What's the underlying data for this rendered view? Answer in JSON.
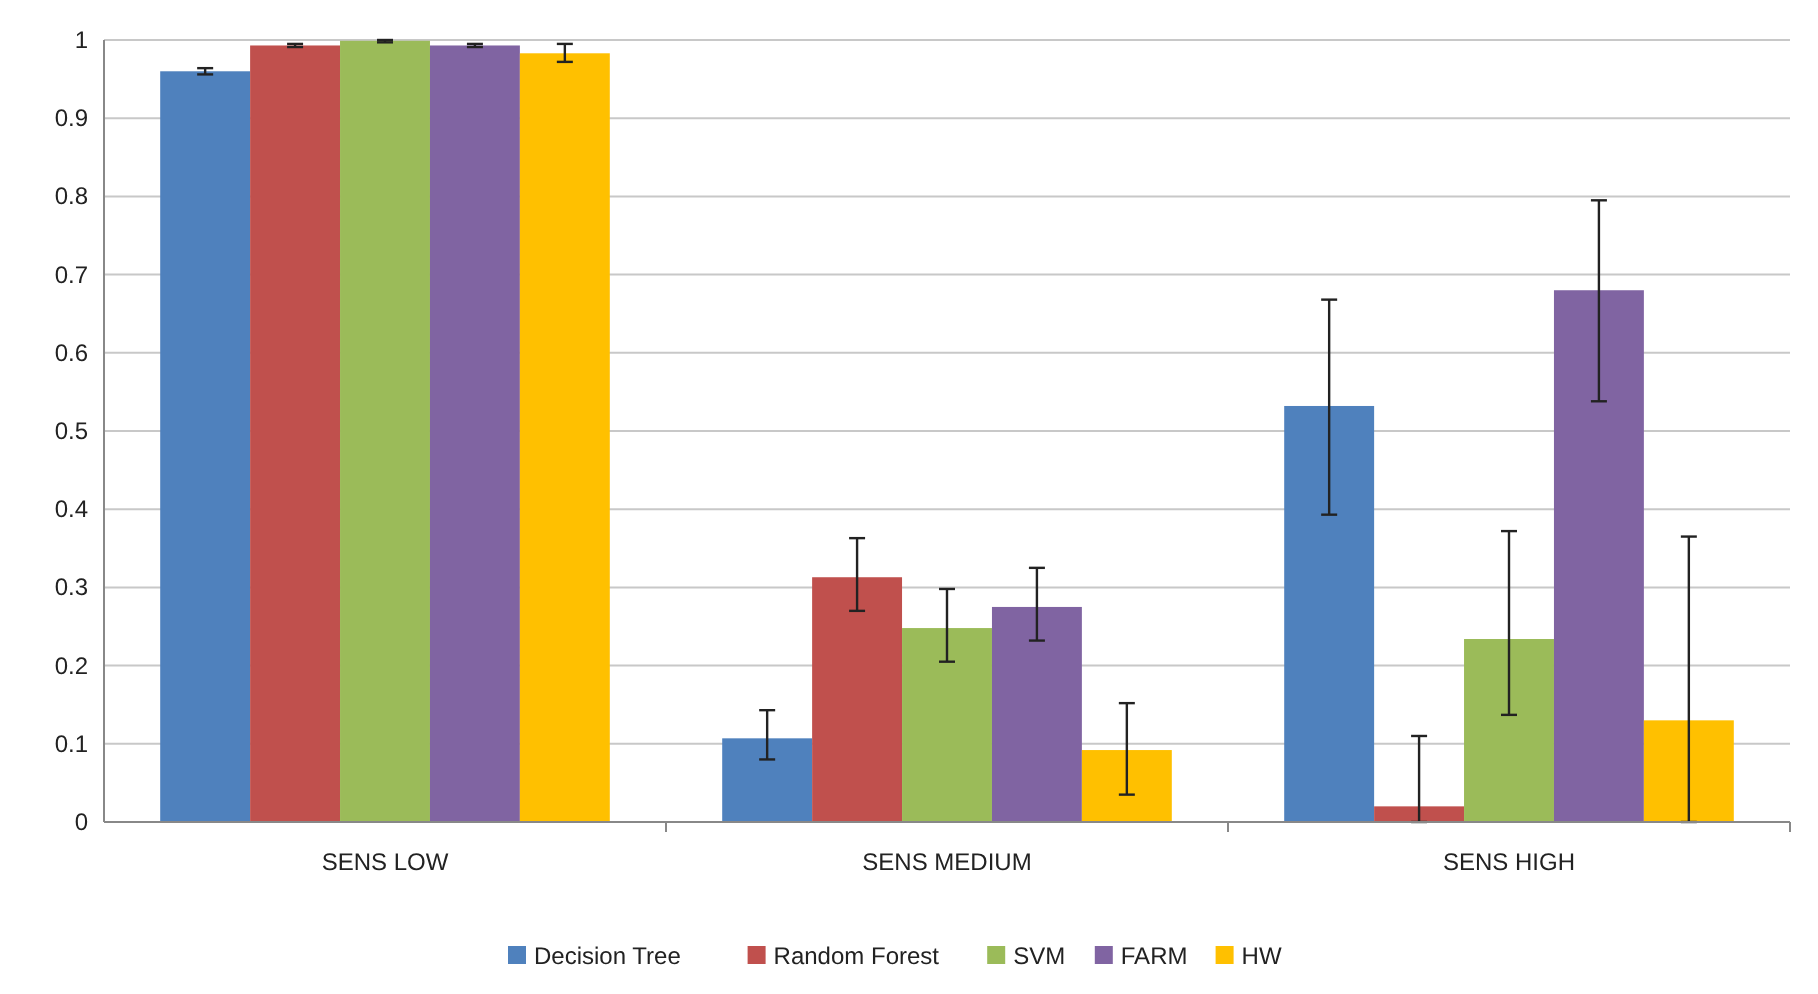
{
  "chart_data": {
    "type": "bar",
    "categories": [
      "SENS LOW",
      "SENS MEDIUM",
      "SENS HIGH"
    ],
    "series": [
      {
        "name": "Decision Tree",
        "color": "#4f81bd",
        "values": [
          0.96,
          0.107,
          0.532
        ],
        "errors": [
          [
            0.956,
            0.964
          ],
          [
            0.08,
            0.143
          ],
          [
            0.393,
            0.668
          ]
        ]
      },
      {
        "name": "Random Forest",
        "color": "#c0504d",
        "values": [
          0.993,
          0.313,
          0.02
        ],
        "errors": [
          [
            0.991,
            0.995
          ],
          [
            0.27,
            0.363
          ],
          [
            0,
            0.11
          ]
        ]
      },
      {
        "name": "SVM",
        "color": "#9bbb59",
        "values": [
          0.999,
          0.248,
          0.234
        ],
        "errors": [
          [
            0.997,
            1
          ],
          [
            0.205,
            0.298
          ],
          [
            0.137,
            0.372
          ]
        ]
      },
      {
        "name": "FARM",
        "color": "#8064a2",
        "values": [
          0.993,
          0.275,
          0.68
        ],
        "errors": [
          [
            0.991,
            0.995
          ],
          [
            0.232,
            0.325
          ],
          [
            0.538,
            0.795
          ]
        ]
      },
      {
        "name": "HW",
        "color": "#ffc000",
        "values": [
          0.983,
          0.092,
          0.13
        ],
        "errors": [
          [
            0.972,
            0.995
          ],
          [
            0.035,
            0.152
          ],
          [
            0,
            0.365
          ]
        ]
      }
    ],
    "ylim": [
      0,
      1
    ],
    "yticks": [
      0,
      0.1,
      0.2,
      0.3,
      0.4,
      0.5,
      0.6,
      0.7,
      0.8,
      0.9,
      1
    ],
    "grid": "y",
    "legend": "bottom"
  }
}
